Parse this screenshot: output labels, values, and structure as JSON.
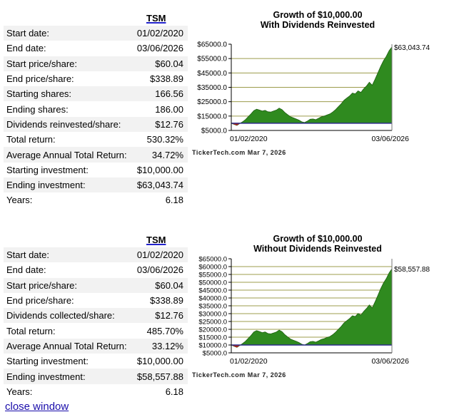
{
  "sections": [
    {
      "ticker": "TSM",
      "rows": [
        {
          "label": "Start date:",
          "value": "01/02/2020"
        },
        {
          "label": "End date:",
          "value": "03/06/2026"
        },
        {
          "label": "Start price/share:",
          "value": "$60.04"
        },
        {
          "label": "End price/share:",
          "value": "$338.89"
        },
        {
          "label": "Starting shares:",
          "value": "166.56"
        },
        {
          "label": "Ending shares:",
          "value": "186.00"
        },
        {
          "label": "Dividends reinvested/share:",
          "value": "$12.76"
        },
        {
          "label": "Total return:",
          "value": "530.32%"
        },
        {
          "label": "Average Annual Total Return:",
          "value": "34.72%"
        },
        {
          "label": "Starting investment:",
          "value": "$10,000.00"
        },
        {
          "label": "Ending investment:",
          "value": "$63,043.74"
        },
        {
          "label": "Years:",
          "value": "6.18"
        }
      ]
    },
    {
      "ticker": "TSM",
      "rows": [
        {
          "label": "Start date:",
          "value": "01/02/2020"
        },
        {
          "label": "End date:",
          "value": "03/06/2026"
        },
        {
          "label": "Start price/share:",
          "value": "$60.04"
        },
        {
          "label": "End price/share:",
          "value": "$338.89"
        },
        {
          "label": "Dividends collected/share:",
          "value": "$12.76"
        },
        {
          "label": "Total return:",
          "value": "485.70%"
        },
        {
          "label": "Average Annual Total Return:",
          "value": "33.12%"
        },
        {
          "label": "Starting investment:",
          "value": "$10,000.00"
        },
        {
          "label": "Ending investment:",
          "value": "$58,557.88"
        },
        {
          "label": "Years:",
          "value": "6.18"
        }
      ]
    }
  ],
  "chart_data": [
    {
      "type": "area",
      "title": "Growth of $10,000.00",
      "subtitle": "With Dividends Reinvested",
      "ylim": [
        5000,
        65000
      ],
      "yticks": [
        "$65000.0",
        "$55000.0",
        "$45000.0",
        "$35000.0",
        "$25000.0",
        "$15000.0",
        "$5000.0"
      ],
      "ytick_values": [
        65000,
        55000,
        45000,
        35000,
        25000,
        15000,
        5000
      ],
      "xlabels": [
        "01/02/2020",
        "03/06/2026"
      ],
      "baseline": 10000,
      "end_label": "$63,043.74",
      "credit": "TickerTech.com Mar 7, 2026",
      "series": [
        10000,
        9200,
        8500,
        9800,
        11000,
        12500,
        14500,
        16500,
        18800,
        19800,
        19200,
        18500,
        19000,
        18000,
        17800,
        18500,
        19200,
        20500,
        19500,
        17500,
        16000,
        14500,
        13800,
        13000,
        12200,
        11000,
        10500,
        11500,
        12800,
        13000,
        12500,
        13500,
        14500,
        15000,
        15800,
        16500,
        17800,
        19500,
        21500,
        23500,
        26000,
        27500,
        29000,
        31000,
        30500,
        32500,
        31500,
        34000,
        36000,
        38500,
        36500,
        40500,
        45000,
        49500,
        53500,
        56500,
        60500,
        63043.74
      ]
    },
    {
      "type": "area",
      "title": "Growth of $10,000.00",
      "subtitle": "Without Dividends Reinvested",
      "ylim": [
        5000,
        65000
      ],
      "yticks": [
        "$65000.0",
        "$60000.0",
        "$55000.0",
        "$50000.0",
        "$45000.0",
        "$40000.0",
        "$35000.0",
        "$30000.0",
        "$25000.0",
        "$20000.0",
        "$15000.0",
        "$10000.0",
        "$5000.0"
      ],
      "ytick_values": [
        65000,
        60000,
        55000,
        50000,
        45000,
        40000,
        35000,
        30000,
        25000,
        20000,
        15000,
        10000,
        5000
      ],
      "xlabels": [
        "01/02/2020",
        "03/06/2026"
      ],
      "baseline": 10000,
      "end_label": "$58,557.88",
      "credit": "TickerTech.com Mar 7, 2026",
      "series": [
        10000,
        9200,
        8500,
        9700,
        10900,
        12300,
        14200,
        16100,
        18300,
        19200,
        18600,
        17900,
        18300,
        17300,
        17100,
        17700,
        18300,
        19500,
        18500,
        16600,
        15200,
        13800,
        13100,
        12400,
        11600,
        10500,
        10000,
        10900,
        12100,
        12300,
        11800,
        12700,
        13600,
        14100,
        14800,
        15400,
        16600,
        18200,
        20000,
        21800,
        24100,
        25500,
        26900,
        28700,
        28200,
        30100,
        29100,
        31400,
        33300,
        35600,
        33700,
        37400,
        41600,
        45800,
        49500,
        52300,
        56000,
        58557.88
      ]
    }
  ],
  "close_link": "close window"
}
